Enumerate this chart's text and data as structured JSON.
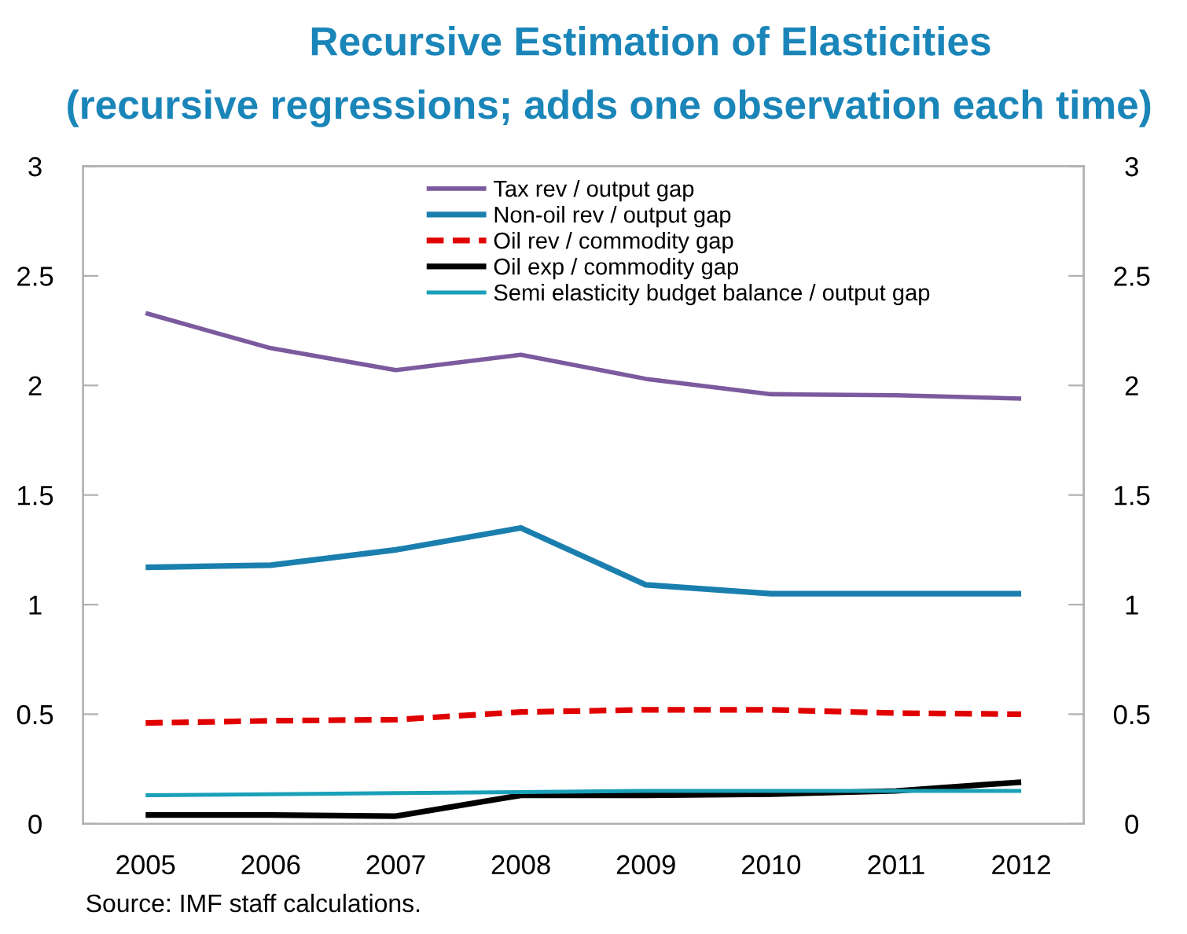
{
  "chart_data": {
    "type": "line",
    "title": "Recursive Estimation of Elasticities",
    "subtitle": "(recursive regressions; adds one observation each time)",
    "categories": [
      "2005",
      "2006",
      "2007",
      "2008",
      "2009",
      "2010",
      "2011",
      "2012"
    ],
    "series": [
      {
        "name": "Tax rev / output gap",
        "color": "#7b5a9e",
        "line_style": "solid",
        "values": [
          2.33,
          2.17,
          2.07,
          2.14,
          2.03,
          1.96,
          1.955,
          1.94
        ]
      },
      {
        "name": "Non-oil rev / output gap",
        "color": "#1a7fae",
        "line_style": "solid",
        "values": [
          1.17,
          1.18,
          1.25,
          1.35,
          1.09,
          1.05,
          1.05,
          1.05
        ]
      },
      {
        "name": "Oil rev / commodity gap",
        "color": "#e00000",
        "line_style": "dashed",
        "values": [
          0.46,
          0.47,
          0.475,
          0.51,
          0.52,
          0.52,
          0.505,
          0.5
        ]
      },
      {
        "name": "Oil exp / commodity gap",
        "color": "#000000",
        "line_style": "solid",
        "values": [
          0.04,
          0.04,
          0.035,
          0.13,
          0.13,
          0.135,
          0.15,
          0.19
        ]
      },
      {
        "name": "Semi elasticity budget balance / output gap",
        "color": "#1aa0b8",
        "line_style": "solid",
        "values": [
          0.13,
          0.135,
          0.14,
          0.145,
          0.15,
          0.15,
          0.15,
          0.15
        ]
      }
    ],
    "ylim": [
      0,
      3
    ],
    "yticks": [
      0,
      0.5,
      1,
      1.5,
      2,
      2.5,
      3
    ],
    "y2lim": [
      0,
      3
    ],
    "y2ticks": [
      0,
      0.5,
      1,
      1.5,
      2,
      2.5,
      3
    ],
    "grid": false,
    "legend": "top",
    "annotations": [
      "Source: IMF staff calculations."
    ]
  }
}
